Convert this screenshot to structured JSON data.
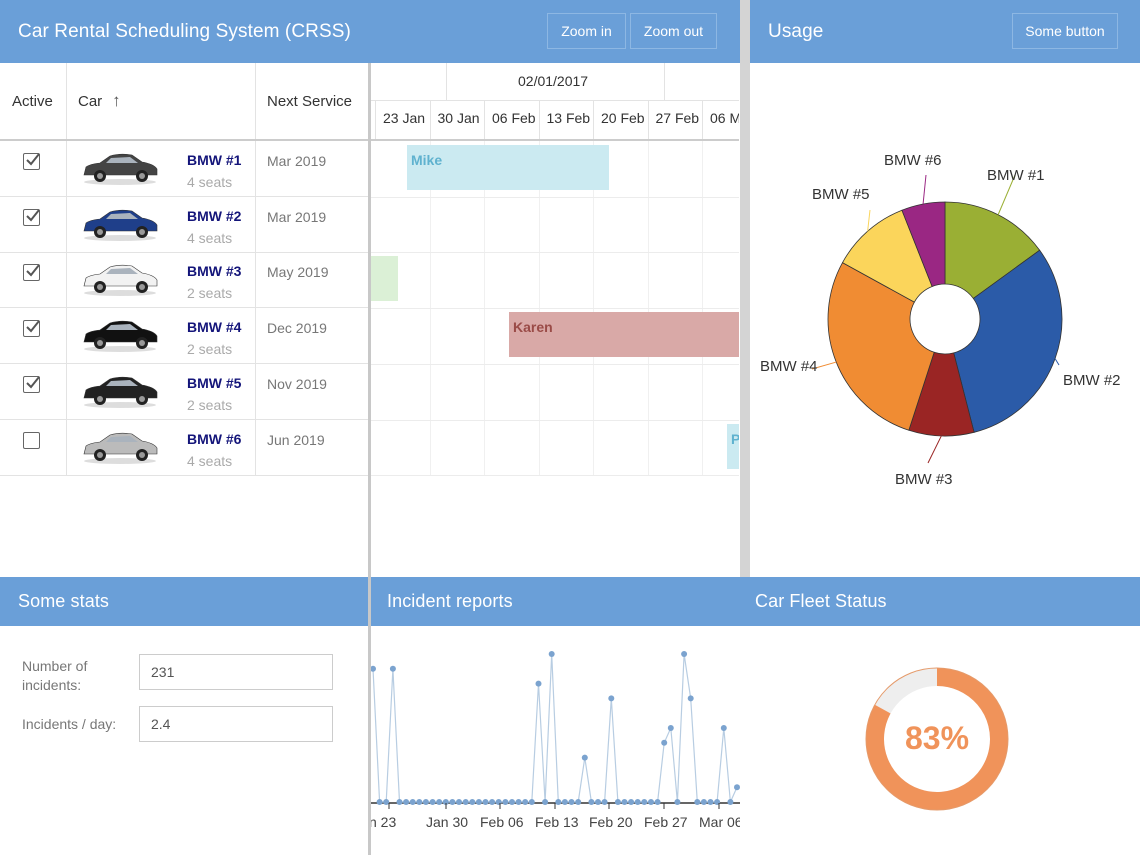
{
  "app": {
    "title": "Car Rental Scheduling System (CRSS)",
    "zoom_in": "Zoom in",
    "zoom_out": "Zoom out"
  },
  "usage": {
    "title": "Usage",
    "button": "Some button"
  },
  "grid": {
    "columns": {
      "active": "Active",
      "car": "Car",
      "sort_icon": "↑",
      "next_service": "Next Service"
    },
    "rows": [
      {
        "name": "BMW #1",
        "seats": "4 seats",
        "service": "Mar 2019",
        "active": true,
        "color": "#444"
      },
      {
        "name": "BMW #2",
        "seats": "4 seats",
        "service": "Mar 2019",
        "active": true,
        "color": "#1f3f8a"
      },
      {
        "name": "BMW #3",
        "seats": "2 seats",
        "service": "May 2019",
        "active": true,
        "color": "#f2f2f2"
      },
      {
        "name": "BMW #4",
        "seats": "2 seats",
        "service": "Dec 2019",
        "active": true,
        "color": "#111"
      },
      {
        "name": "BMW #5",
        "seats": "2 seats",
        "service": "Nov 2019",
        "active": true,
        "color": "#222"
      },
      {
        "name": "BMW #6",
        "seats": "4 seats",
        "service": "Jun 2019",
        "active": false,
        "color": "#bbb"
      }
    ]
  },
  "schedule": {
    "month": "02/01/2017",
    "weeks": [
      "23 Jan",
      "30 Jan",
      "06 Feb",
      "13 Feb",
      "20 Feb",
      "27 Feb",
      "06 M"
    ],
    "bookings": [
      {
        "label": "Mike",
        "color": "#cbeaf1",
        "text_color": "#5fb2cf"
      },
      {
        "label": "",
        "color": "#dbf0d6",
        "text_color": "#7fb86f"
      },
      {
        "label": "Karen",
        "color": "#d9a9a7",
        "text_color": "#9a4b47"
      },
      {
        "label": "P",
        "color": "#cbeaf1",
        "text_color": "#5fb2cf"
      }
    ]
  },
  "stats": {
    "title": "Some stats",
    "incidents_label": "Number of incidents:",
    "incidents_value": "231",
    "per_day_label": "Incidents / day:",
    "per_day_value": "2.4"
  },
  "incidents": {
    "title": "Incident reports",
    "x_ticks": [
      "n 23",
      "Jan 30",
      "Feb 06",
      "Feb 13",
      "Feb 20",
      "Feb 27",
      "Mar 06"
    ]
  },
  "fleet": {
    "title": "Car Fleet Status",
    "percent_label": "83%",
    "percent": 83,
    "accent": "#f0935a"
  },
  "chart_data": [
    {
      "type": "pie",
      "title": "Usage",
      "categories": [
        "BMW #1",
        "BMW #2",
        "BMW #3",
        "BMW #4",
        "BMW #5",
        "BMW #6"
      ],
      "values": [
        15,
        31,
        9,
        28,
        11,
        6
      ],
      "colors": [
        "#9aaf34",
        "#2b5ba8",
        "#9a2524",
        "#f08c33",
        "#fbd55b",
        "#9a2783"
      ],
      "donut": true
    },
    {
      "type": "line",
      "title": "Incident reports",
      "x_ticks": [
        "n 23",
        "Jan 30",
        "Feb 06",
        "Feb 13",
        "Feb 20",
        "Feb 27",
        "Mar 06"
      ],
      "values": [
        9,
        0,
        0,
        9,
        0,
        0,
        0,
        0,
        0,
        0,
        0,
        0,
        0,
        0,
        0,
        0,
        0,
        0,
        0,
        0,
        0,
        0,
        0,
        0,
        0,
        8,
        0,
        10,
        0,
        0,
        0,
        0,
        3,
        0,
        0,
        0,
        7,
        0,
        0,
        0,
        0,
        0,
        0,
        0,
        4,
        5,
        0,
        10,
        7,
        0,
        0,
        0,
        0,
        5,
        0,
        1
      ]
    }
  ]
}
